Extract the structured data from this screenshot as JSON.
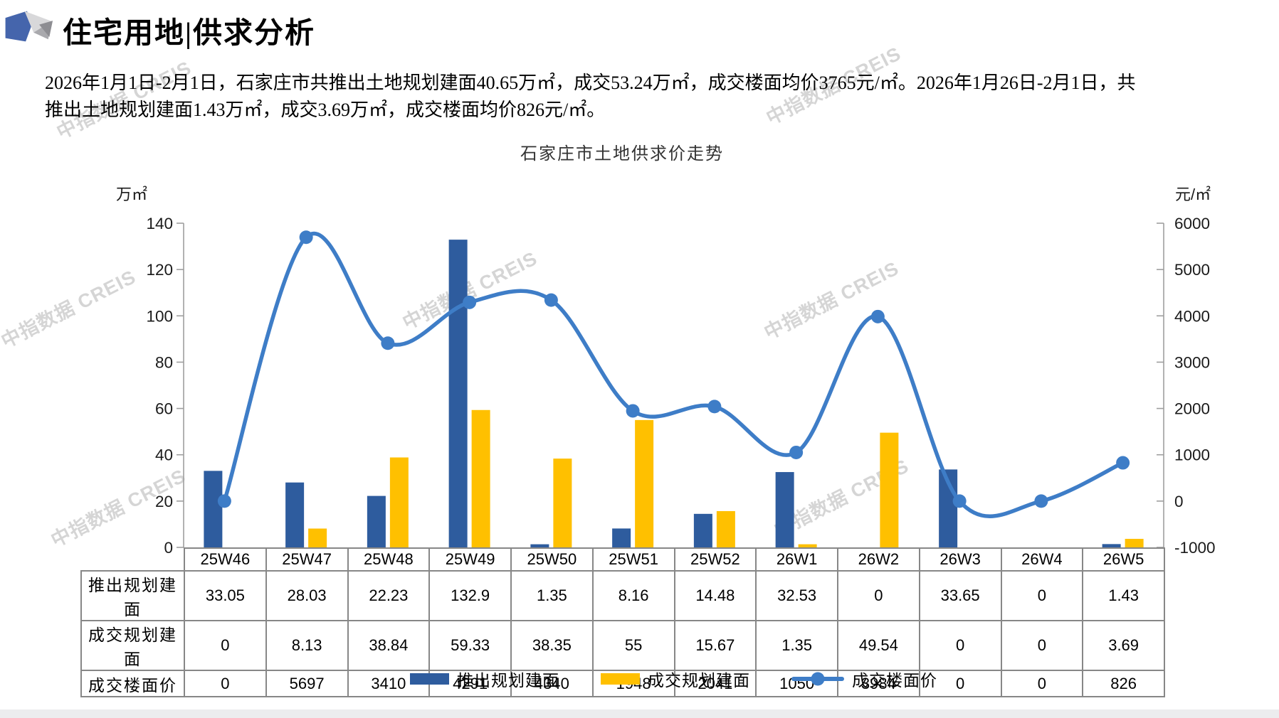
{
  "page": {
    "section_title": "住宅用地|供求分析",
    "summary_line1": "2026年1月1日-2月1日，石家庄市共推出土地规划建面40.65万㎡，成交53.24万㎡，成交楼面均价3765元/㎡。2026年1月26日-2月1日，共",
    "summary_line2": "推出土地规划建面1.43万㎡，成交3.69万㎡，成交楼面均价826元/㎡。"
  },
  "watermark": {
    "text": "中指数据 CREIS"
  },
  "chart_data": {
    "type": "bar+line",
    "title": "石家庄市土地供求价走势",
    "categories": [
      "25W46",
      "25W47",
      "25W48",
      "25W49",
      "25W50",
      "25W51",
      "25W52",
      "26W1",
      "26W2",
      "26W3",
      "26W4",
      "26W5"
    ],
    "series": [
      {
        "name": "推出规划建面",
        "type": "bar",
        "axis": "left",
        "color": "#2E5C9E",
        "values": [
          33.05,
          28.03,
          22.23,
          132.9,
          1.35,
          8.16,
          14.48,
          32.53,
          0,
          33.65,
          0,
          1.43
        ]
      },
      {
        "name": "成交规划建面",
        "type": "bar",
        "axis": "left",
        "color": "#FFC000",
        "values": [
          0,
          8.13,
          38.84,
          59.33,
          38.35,
          55,
          15.67,
          1.35,
          49.54,
          0,
          0,
          3.69
        ]
      },
      {
        "name": "成交楼面价",
        "type": "line",
        "axis": "right",
        "color": "#3E7DC7",
        "values": [
          0,
          5697,
          3410,
          4291,
          4340,
          1948,
          2041,
          1050,
          3984,
          0,
          0,
          826
        ]
      }
    ],
    "left_axis": {
      "label": "万㎡",
      "min": 0,
      "max": 140,
      "step": 20
    },
    "right_axis": {
      "label": "元/㎡",
      "min": -1000,
      "max": 6000,
      "step": 1000
    },
    "grid": false,
    "legend_position": "bottom"
  },
  "table": {
    "rows": [
      {
        "label": "推出规划建面",
        "values": [
          "33.05",
          "28.03",
          "22.23",
          "132.9",
          "1.35",
          "8.16",
          "14.48",
          "32.53",
          "0",
          "33.65",
          "0",
          "1.43"
        ]
      },
      {
        "label": "成交规划建面",
        "values": [
          "0",
          "8.13",
          "38.84",
          "59.33",
          "38.35",
          "55",
          "15.67",
          "1.35",
          "49.54",
          "0",
          "0",
          "3.69"
        ]
      },
      {
        "label": "成交楼面价",
        "values": [
          "0",
          "5697",
          "3410",
          "4291",
          "4340",
          "1948",
          "2041",
          "1050",
          "3984",
          "0",
          "0",
          "826"
        ]
      }
    ]
  }
}
